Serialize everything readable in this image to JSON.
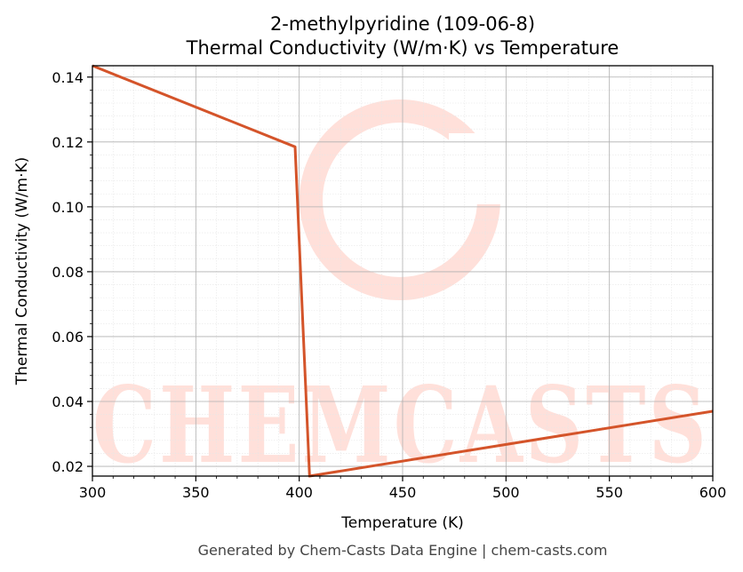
{
  "chart_data": {
    "type": "line",
    "title": "2-methylpyridine (109-06-8)",
    "subtitle": "Thermal Conductivity (W/m·K) vs Temperature",
    "xlabel": "Temperature (K)",
    "ylabel": "Thermal Conductivity (W/m·K)",
    "xlim": [
      300,
      600
    ],
    "ylim": [
      0.017,
      0.1435
    ],
    "xticks": [
      300,
      350,
      400,
      450,
      500,
      550,
      600
    ],
    "yticks": [
      0.02,
      0.04,
      0.06,
      0.08,
      0.1,
      0.12,
      0.14
    ],
    "grid": true,
    "legend": "none",
    "series": [
      {
        "color": "#d4542a",
        "x": [
          300,
          398,
          405,
          600
        ],
        "y": [
          0.1435,
          0.1185,
          0.017,
          0.037
        ]
      }
    ]
  },
  "watermark": {
    "text": "CHEMCASTS",
    "color": "#ffe0da"
  },
  "footer": "Generated by Chem-Casts Data Engine | chem-casts.com"
}
